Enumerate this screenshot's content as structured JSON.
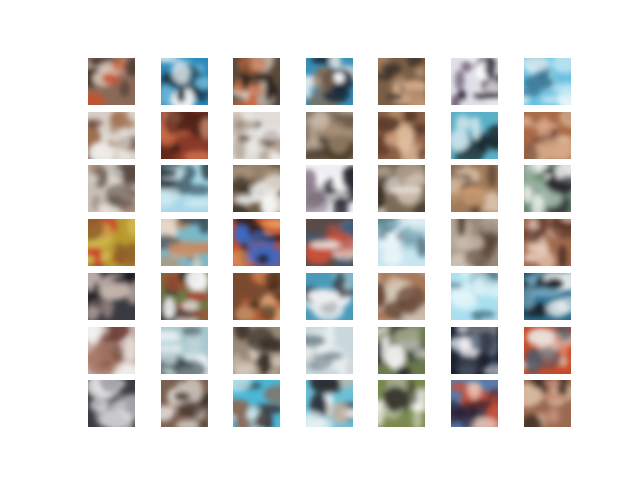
{
  "figure": {
    "rows": 7,
    "cols": 7,
    "tiles": [
      {
        "colors": [
          "#8c6a5a",
          "#d8c8b8",
          "#c8502a",
          "#4a3a30"
        ]
      },
      {
        "colors": [
          "#2a8ab8",
          "#f2f4f6",
          "#1a3040",
          "#6ab8d8"
        ]
      },
      {
        "colors": [
          "#5a4a3a",
          "#e8dcd0",
          "#c86a40",
          "#2a2420"
        ]
      },
      {
        "colors": [
          "#3a90b8",
          "#f6f6f6",
          "#8a6a50",
          "#1a2a38"
        ]
      },
      {
        "colors": [
          "#7a6048",
          "#b89070",
          "#3a3028",
          "#d8b090"
        ]
      },
      {
        "colors": [
          "#e0e0e8",
          "#1a1a28",
          "#6a5a70",
          "#ffffff"
        ]
      },
      {
        "colors": [
          "#6ac0e0",
          "#b8e4f2",
          "#3a7a98",
          "#e8f6fa"
        ]
      },
      {
        "colors": [
          "#d8d0c8",
          "#a07050",
          "#eeeae6",
          "#6a4a38"
        ]
      },
      {
        "colors": [
          "#8a3a28",
          "#c86a48",
          "#4a2018",
          "#d89878"
        ]
      },
      {
        "colors": [
          "#e0dcd8",
          "#b0a090",
          "#5a4030",
          "#f0eeec"
        ]
      },
      {
        "colors": [
          "#8a7a6a",
          "#c8b8a8",
          "#4a3a2a",
          "#a89078"
        ]
      },
      {
        "colors": [
          "#8a6048",
          "#c89878",
          "#5a3a28",
          "#e0c0a0"
        ]
      },
      {
        "colors": [
          "#5ab0c8",
          "#2a4850",
          "#c8e0e8",
          "#1a2a30"
        ]
      },
      {
        "colors": [
          "#a86a48",
          "#d8a888",
          "#6a4030",
          "#e8c8a8"
        ]
      },
      {
        "colors": [
          "#c8c0b8",
          "#5a4a40",
          "#eae6e2",
          "#8a6a58"
        ]
      },
      {
        "colors": [
          "#a8d8e8",
          "#4a6a78",
          "#d8eef4",
          "#2a3a40"
        ]
      },
      {
        "colors": [
          "#6a5a48",
          "#f4f4f2",
          "#3a3028",
          "#a8907a"
        ]
      },
      {
        "colors": [
          "#f0f0f4",
          "#1a1a24",
          "#8a7a88",
          "#ffffff"
        ]
      },
      {
        "colors": [
          "#7a6a58",
          "#c8b8a8",
          "#3a3228",
          "#e8e0d8"
        ]
      },
      {
        "colors": [
          "#a07a5a",
          "#d8c0a8",
          "#5a4030",
          "#c89a70"
        ]
      },
      {
        "colors": [
          "#6a8a70",
          "#f4f4f4",
          "#2a2a30",
          "#a0b8a8"
        ]
      },
      {
        "colors": [
          "#b89a30",
          "#d8c058",
          "#8a5a28",
          "#c8402a"
        ]
      },
      {
        "colors": [
          "#7ab8c8",
          "#c88a60",
          "#3a4a50",
          "#e8d8c8"
        ]
      },
      {
        "colors": [
          "#c84a2a",
          "#3a6ac8",
          "#2a2020",
          "#e8a060"
        ]
      },
      {
        "colors": [
          "#5a4a48",
          "#c8503a",
          "#e8e0d8",
          "#3a5a78"
        ]
      },
      {
        "colors": [
          "#c8e6f0",
          "#8ab8c8",
          "#e8f4f8",
          "#5a7a88"
        ]
      },
      {
        "colors": [
          "#9a8a7a",
          "#d0c4b8",
          "#5a4638",
          "#b8a898"
        ]
      },
      {
        "colors": [
          "#a06a50",
          "#d8b098",
          "#4a2a20",
          "#e8d0c0"
        ]
      },
      {
        "colors": [
          "#3a3a40",
          "#c8b8b0",
          "#1a1a20",
          "#8a7a78"
        ]
      },
      {
        "colors": [
          "#6a7a48",
          "#f4f4f4",
          "#a84a30",
          "#2a2a28"
        ]
      },
      {
        "colors": [
          "#7a4a30",
          "#c86a38",
          "#3a2818",
          "#d8a070"
        ]
      },
      {
        "colors": [
          "#4a9ab8",
          "#f0f0f2",
          "#2a3038",
          "#8ab8c8"
        ]
      },
      {
        "colors": [
          "#b8a090",
          "#d8c8b8",
          "#6a4a38",
          "#a87858"
        ]
      },
      {
        "colors": [
          "#a8e0f0",
          "#d8f2f8",
          "#4a7888",
          "#e8f8fc"
        ]
      },
      {
        "colors": [
          "#2a6a88",
          "#f4f4f4",
          "#1a2028",
          "#7ab0c8"
        ]
      },
      {
        "colors": [
          "#c8b0a8",
          "#f2f0ee",
          "#6a3a30",
          "#a87a68"
        ]
      },
      {
        "colors": [
          "#a8c8d0",
          "#e8f0f2",
          "#3a4a50",
          "#c8d8dc"
        ]
      },
      {
        "colors": [
          "#9a8a7a",
          "#d8ccc0",
          "#3a302a",
          "#c0b0a0"
        ]
      },
      {
        "colors": [
          "#c8d8dc",
          "#e8eef0",
          "#7a8a90",
          "#f2f6f8"
        ]
      },
      {
        "colors": [
          "#6a7a50",
          "#f4f4f4",
          "#2a2a28",
          "#a8b090"
        ]
      },
      {
        "colors": [
          "#1a2030",
          "#f4f4f6",
          "#6a7a90",
          "#3a4050"
        ]
      },
      {
        "colors": [
          "#c84a2a",
          "#e8e4e0",
          "#4a5a6a",
          "#f0a080"
        ]
      },
      {
        "colors": [
          "#3a3a40",
          "#f4f4f4",
          "#8a8a90",
          "#c8c8cc"
        ]
      },
      {
        "colors": [
          "#7a6050",
          "#c8c0b8",
          "#3a2a24",
          "#e8e2dc"
        ]
      },
      {
        "colors": [
          "#4ab8d8",
          "#3a3030",
          "#c8e8f0",
          "#8a6a58"
        ]
      },
      {
        "colors": [
          "#6ac0d8",
          "#c8b8a8",
          "#2a2a30",
          "#e8f4f8"
        ]
      },
      {
        "colors": [
          "#7a8a50",
          "#f6f6f4",
          "#3a3a30",
          "#b8c0a0"
        ]
      },
      {
        "colors": [
          "#5a7aa8",
          "#c8503a",
          "#2a2030",
          "#e8c0b0"
        ]
      },
      {
        "colors": [
          "#9a6a50",
          "#d8b8a0",
          "#3a2a20",
          "#c8907a"
        ]
      }
    ]
  }
}
